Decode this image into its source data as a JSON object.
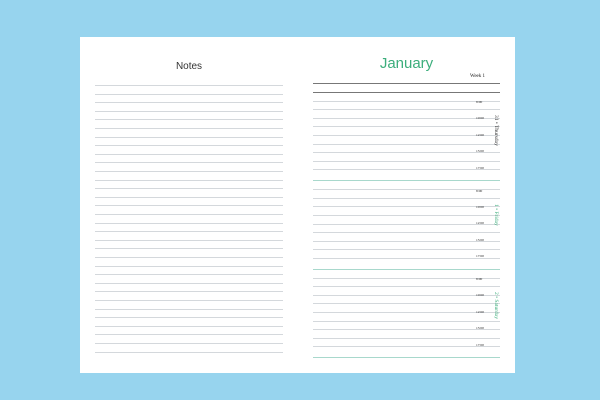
{
  "notes": {
    "title": "Notes"
  },
  "planner": {
    "month": "January",
    "week": "Week 1",
    "days": [
      {
        "label": "31 • Thursday",
        "color": "#333333",
        "times": [
          "8:00",
          "10:00",
          "12:00",
          "15:00",
          "17:00"
        ]
      },
      {
        "label": "1 • Friday",
        "color": "#3cae7c",
        "times": [
          "8:00",
          "10:00",
          "12:00",
          "15:00",
          "17:00"
        ]
      },
      {
        "label": "2 • Saturday",
        "color": "#3cae7c",
        "times": [
          "8:00",
          "10:00",
          "12:00",
          "15:00",
          "17:00"
        ]
      }
    ]
  },
  "colors": {
    "background": "#97d4ee",
    "accent": "#3cae7c",
    "separator": "#a8d8cc"
  }
}
